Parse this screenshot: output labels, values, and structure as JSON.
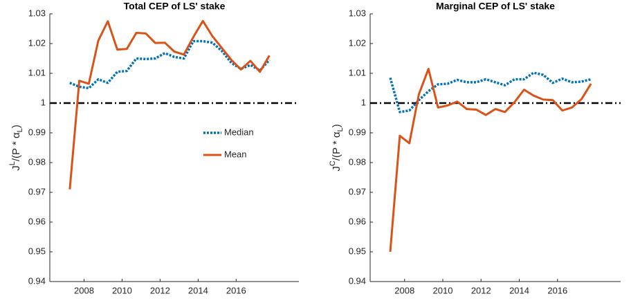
{
  "chart_data": [
    {
      "type": "line",
      "title": "Total CEP of LS' stake",
      "y_label": {
        "base": "J",
        "sup": "L",
        "mid": "/(P * α",
        "sub": "L",
        "end": ")"
      },
      "x": [
        2007.25,
        2007.75,
        2008.25,
        2008.75,
        2009.25,
        2009.75,
        2010.25,
        2010.75,
        2011.25,
        2011.75,
        2012.25,
        2012.75,
        2013.25,
        2013.75,
        2014.25,
        2014.75,
        2015.25,
        2015.75,
        2016.25,
        2016.75,
        2017.25,
        2017.75
      ],
      "series": [
        {
          "name": "Median",
          "color": "#0072bd",
          "style": "dotted",
          "values": [
            1.0068,
            1.0055,
            1.005,
            1.008,
            1.0068,
            1.0105,
            1.0108,
            1.015,
            1.0148,
            1.015,
            1.0168,
            1.0155,
            1.015,
            1.0208,
            1.0208,
            1.0203,
            1.0175,
            1.0135,
            1.0115,
            1.0128,
            1.011,
            1.0145
          ]
        },
        {
          "name": "Mean",
          "color": "#d95319",
          "style": "solid",
          "values": [
            0.971,
            1.0075,
            1.0065,
            1.021,
            1.0275,
            1.018,
            1.0182,
            1.0236,
            1.0234,
            1.0202,
            1.0203,
            1.0173,
            1.0163,
            1.0222,
            1.0276,
            1.0225,
            1.0185,
            1.0145,
            1.0113,
            1.0142,
            1.0105,
            1.016
          ]
        }
      ],
      "reference_line": 1,
      "legend": "center",
      "xlim": [
        2006.2,
        2019.3
      ],
      "xticks": [
        2008,
        2010,
        2012,
        2014,
        2016
      ],
      "ylim": [
        0.94,
        1.03
      ],
      "yticks": [
        0.94,
        0.95,
        0.96,
        0.97,
        0.98,
        0.99,
        1,
        1.01,
        1.02,
        1.03
      ]
    },
    {
      "type": "line",
      "title": "Marginal CEP of LS' stake",
      "y_label": {
        "base": "J",
        "sup": "C",
        "mid": "/(P * α",
        "sub": "L",
        "end": ")"
      },
      "x": [
        2007.25,
        2007.75,
        2008.25,
        2008.75,
        2009.25,
        2009.75,
        2010.25,
        2010.75,
        2011.25,
        2011.75,
        2012.25,
        2012.75,
        2013.25,
        2013.75,
        2014.25,
        2014.75,
        2015.25,
        2015.75,
        2016.25,
        2016.75,
        2017.25,
        2017.75
      ],
      "series": [
        {
          "color": "#0072bd",
          "style": "dotted",
          "values": [
            1.0085,
            0.997,
            0.9975,
            1.001,
            1.004,
            1.0063,
            1.0065,
            1.0078,
            1.007,
            1.007,
            1.008,
            1.007,
            1.006,
            1.008,
            1.008,
            1.0102,
            1.0095,
            1.0068,
            1.0082,
            1.007,
            1.0072,
            1.008
          ]
        },
        {
          "color": "#d95319",
          "style": "solid",
          "values": [
            0.95,
            0.989,
            0.9865,
            1.003,
            1.0115,
            0.9985,
            0.9992,
            1.0005,
            0.998,
            0.9978,
            0.996,
            0.998,
            0.997,
            1.0003,
            1.0045,
            1.0025,
            1.0012,
            1.001,
            0.9975,
            0.9985,
            1.0013,
            1.0065
          ]
        }
      ],
      "reference_line": 1,
      "xlim": [
        2006.2,
        2019.3
      ],
      "xticks": [
        2008,
        2010,
        2012,
        2014,
        2016
      ],
      "ylim": [
        0.94,
        1.03
      ],
      "yticks": [
        0.94,
        0.95,
        0.96,
        0.97,
        0.98,
        0.99,
        1,
        1.01,
        1.02,
        1.03
      ]
    }
  ]
}
